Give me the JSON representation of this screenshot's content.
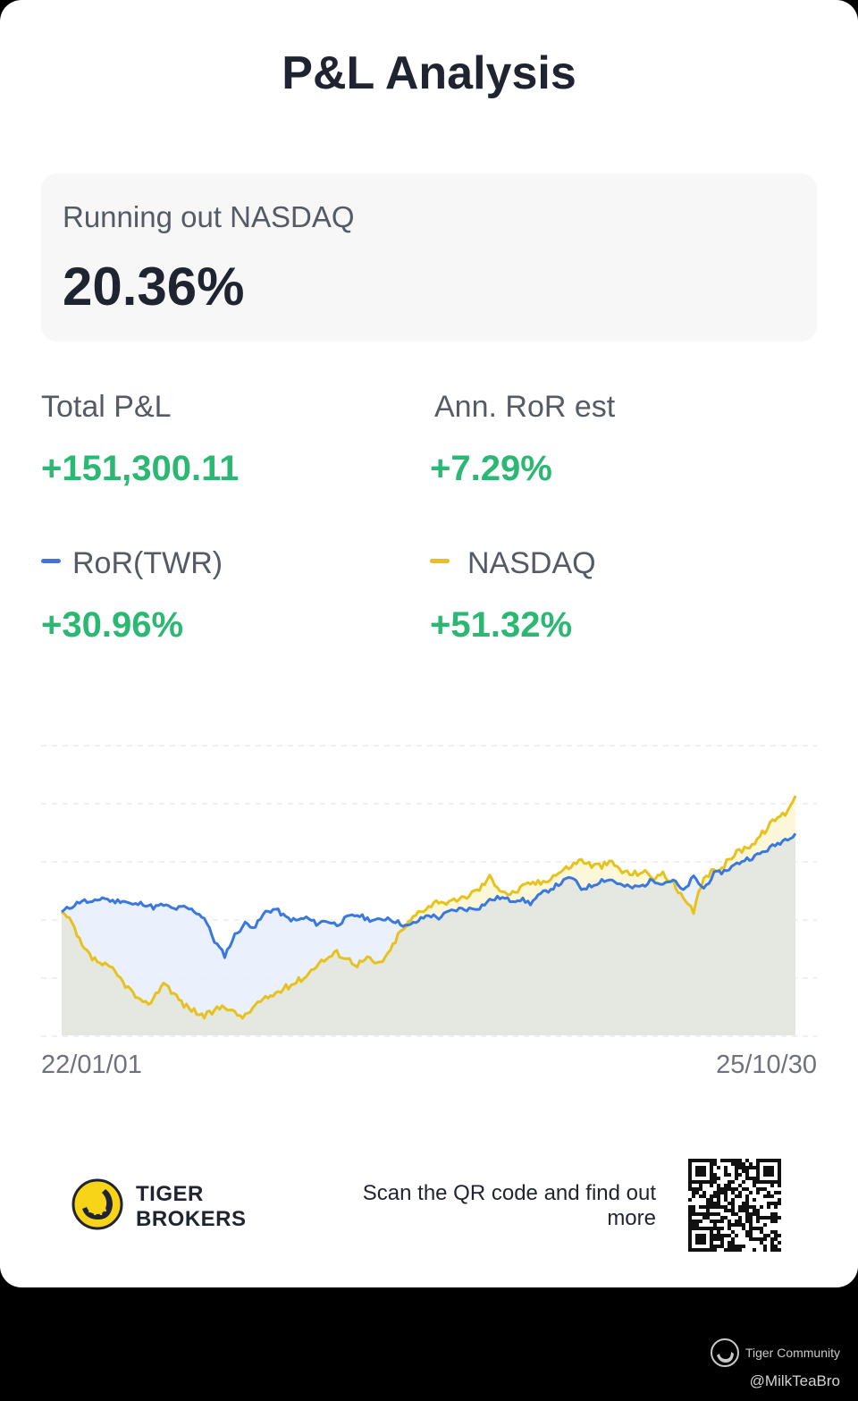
{
  "title": "P&L Analysis",
  "summary": {
    "label": "Running out NASDAQ",
    "value": "20.36%"
  },
  "metrics": {
    "total_pl": {
      "label": "Total P&L",
      "value": "+151,300.11"
    },
    "ann_ror": {
      "label": "Ann. RoR est",
      "value": "+7.29%"
    },
    "ror_twr": {
      "label": "RoR(TWR)",
      "value": "+30.96%"
    },
    "nasdaq": {
      "label": "NASDAQ",
      "value": "+51.32%"
    }
  },
  "colors": {
    "positive": "#2ab872",
    "ror_series": "#3a78e0",
    "nasdaq_series": "#e7c21c",
    "base_area": "#e5e8e0"
  },
  "chart_data": {
    "type": "line",
    "x_start_label": "22/01/01",
    "x_end_label": "25/10/30",
    "grid": "horizontal-dashed",
    "series": [
      {
        "name": "RoR(TWR)",
        "color": "#3a78e0",
        "values": [
          0,
          1,
          2,
          1.5,
          2.5,
          1.8,
          2,
          1.2,
          1.5,
          0.8,
          1.2,
          0.5,
          0.8,
          0.2,
          -1,
          -5,
          -7.5,
          -4,
          -2,
          -2.5,
          0,
          0.5,
          -1,
          -1.5,
          -1,
          -2,
          -1.5,
          -2.2,
          -1,
          -0.5,
          -1.2,
          -1.5,
          -1,
          -1.8,
          -2.5,
          -1.5,
          -0.5,
          -1,
          0,
          0.5,
          0.5,
          0.8,
          2,
          2.5,
          2,
          2.2,
          1.5,
          3,
          4,
          5,
          6,
          4,
          4.5,
          5.5,
          5.5,
          4.5,
          4.2,
          4.5,
          5.5,
          5,
          5.5,
          3.5,
          6,
          4,
          6.5,
          7,
          8,
          9,
          9.5,
          10.5,
          11.5,
          12.5,
          13.5
        ]
      },
      {
        "name": "NASDAQ",
        "color": "#e7c21c",
        "values": [
          0,
          -2,
          -6,
          -8,
          -9,
          -10,
          -12,
          -14,
          -16,
          -15,
          -12,
          -14,
          -16,
          -17,
          -18,
          -17,
          -16,
          -17.5,
          -18,
          -16,
          -15,
          -14,
          -13,
          -12,
          -11,
          -9,
          -8,
          -7,
          -8,
          -9,
          -8,
          -9,
          -7.5,
          -4,
          -2,
          0,
          1,
          2,
          1.5,
          2,
          3,
          4,
          6,
          4,
          3,
          4,
          5,
          5,
          6,
          7,
          8,
          9,
          8,
          8,
          8.5,
          7,
          6.5,
          7,
          6,
          6.5,
          5,
          2,
          0,
          6,
          7,
          8,
          10,
          11,
          12,
          14,
          16,
          17,
          20
        ]
      }
    ]
  },
  "footer": {
    "brand_line1": "TIGER",
    "brand_line2": "BROKERS",
    "scan_text": "Scan the QR code and find out more"
  },
  "community": {
    "name": "Tiger Community",
    "handle": "@MilkTeaBro"
  }
}
